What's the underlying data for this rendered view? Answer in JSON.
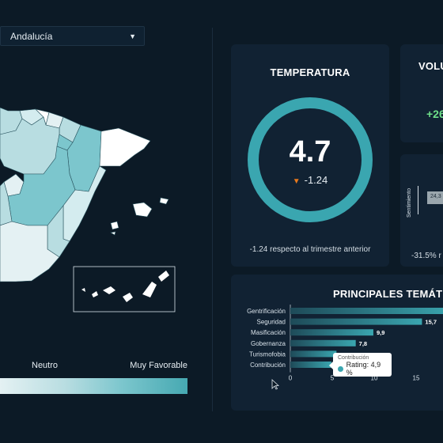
{
  "region_selector": {
    "selected": "Andalucía"
  },
  "map": {
    "legend_mid_label": "Neutro",
    "legend_high_label": "Muy Favorable",
    "colors": {
      "favorable": "#46a9b2",
      "neutral": "#b8dde1",
      "light": "#e4f1f3",
      "white": "#ffffff"
    }
  },
  "temperature_card": {
    "title": "TEMPERATURA",
    "value": "4.7",
    "delta": "-1.24",
    "delta_direction": "down",
    "footnote": "-1.24 respecto al trimestre anterior",
    "ring_color": "#3aa6b0"
  },
  "volume_card": {
    "title": "VOLU",
    "change": "+26"
  },
  "sentiment_card": {
    "axis_label": "Sentimiento",
    "bar_value": "24,3",
    "footnote": "-31.5% r"
  },
  "topics_card": {
    "title": "PRINCIPALES TEMÁTIC",
    "tooltip": {
      "label": "Contribución",
      "text": "Rating: 4,9 %"
    }
  },
  "chart_data": {
    "type": "bar",
    "orientation": "horizontal",
    "categories": [
      "Gentrificación",
      "Seguridad",
      "Masificación",
      "Gobernanza",
      "Turismofobia",
      "Contribución"
    ],
    "values": [
      19.5,
      15.7,
      9.9,
      7.8,
      5.5,
      4.9
    ],
    "value_labels": [
      "",
      "15,7",
      "9,9",
      "7,8",
      "",
      ""
    ],
    "x_ticks": [
      "0",
      "5",
      "10",
      "15"
    ],
    "xlim": [
      0,
      20
    ],
    "title": "PRINCIPALES TEMÁTIC",
    "bar_color": "#3aa6b0"
  }
}
